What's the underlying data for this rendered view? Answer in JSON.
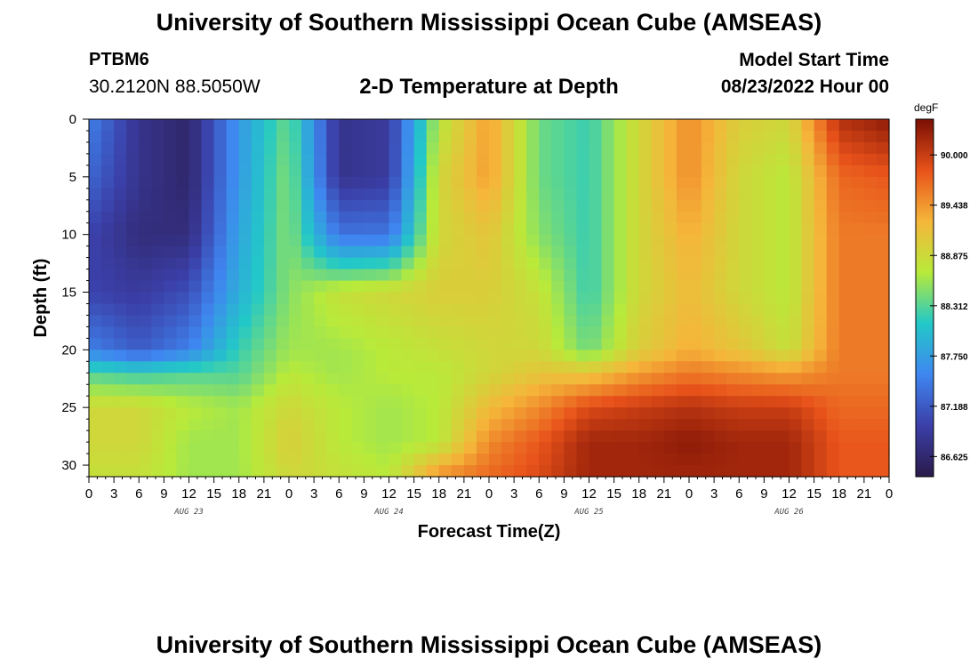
{
  "header": {
    "title": "University of Southern Mississippi Ocean Cube (AMSEAS)",
    "station_id": "PTBM6",
    "coordinates": "30.2120N  88.5050W",
    "subtitle": "2-D Temperature at Depth",
    "model_start_label": "Model Start Time",
    "model_start_value": "08/23/2022 Hour 00"
  },
  "footer": {
    "title": "University of Southern Mississippi Ocean Cube (AMSEAS)"
  },
  "chart_data": {
    "type": "heatmap",
    "title": "2-D Temperature at Depth",
    "xlabel": "Forecast Time(Z)",
    "ylabel": "Depth (ft)",
    "x_unit": "hours since 08/23/2022 00Z",
    "x_range": [
      0,
      96
    ],
    "y_range": [
      0,
      31
    ],
    "y_inverted": true,
    "x_tick_labels": [
      "0",
      "3",
      "6",
      "9",
      "12",
      "15",
      "18",
      "21",
      "0",
      "3",
      "6",
      "9",
      "12",
      "15",
      "18",
      "21",
      "0",
      "3",
      "6",
      "9",
      "12",
      "15",
      "18",
      "21",
      "0",
      "3",
      "6",
      "9",
      "12",
      "15",
      "18",
      "21",
      "0"
    ],
    "y_ticks": [
      0,
      5,
      10,
      15,
      20,
      25,
      30
    ],
    "day_labels": [
      "AUG 23",
      "AUG 24",
      "AUG 25",
      "AUG 26"
    ],
    "colorbar": {
      "unit": "degF",
      "range": [
        86.4,
        90.4
      ],
      "ticks": [
        90.0,
        89.438,
        88.875,
        88.312,
        87.75,
        87.188,
        86.625
      ],
      "tick_labels": [
        "90.000",
        "89.438",
        "88.875",
        "88.312",
        "87.750",
        "87.188",
        "86.625"
      ],
      "colors": [
        "#2a1a4a",
        "#3b3fa8",
        "#3f86f0",
        "#22c8c8",
        "#b8ea3a",
        "#f5b63a",
        "#e8521a",
        "#7a0f04"
      ]
    },
    "series": [
      {
        "x": 0,
        "depths": [
          0,
          5,
          10,
          15,
          20,
          22,
          25,
          28,
          31
        ],
        "values": [
          87.5,
          87.3,
          87.0,
          87.0,
          87.5,
          88.3,
          88.9,
          88.9,
          88.8
        ]
      },
      {
        "x": 6,
        "depths": [
          0,
          5,
          10,
          15,
          20,
          22,
          25,
          28,
          31
        ],
        "values": [
          86.8,
          86.8,
          86.7,
          86.9,
          87.2,
          88.2,
          88.9,
          88.9,
          88.8
        ]
      },
      {
        "x": 12,
        "depths": [
          0,
          5,
          10,
          15,
          20,
          22,
          25,
          28,
          31
        ],
        "values": [
          86.6,
          86.6,
          86.7,
          87.1,
          87.5,
          88.3,
          88.7,
          88.6,
          88.6
        ]
      },
      {
        "x": 18,
        "depths": [
          0,
          5,
          10,
          15,
          20,
          22,
          25,
          28,
          31
        ],
        "values": [
          87.7,
          87.7,
          87.8,
          87.9,
          88.2,
          88.3,
          88.6,
          88.6,
          88.6
        ]
      },
      {
        "x": 24,
        "depths": [
          0,
          5,
          10,
          15,
          20,
          22,
          25,
          28,
          31
        ],
        "values": [
          88.4,
          88.5,
          88.5,
          88.5,
          88.6,
          88.7,
          88.9,
          89.0,
          88.9
        ]
      },
      {
        "x": 30,
        "depths": [
          0,
          5,
          10,
          15,
          20,
          22,
          25,
          28,
          31
        ],
        "values": [
          86.8,
          86.8,
          87.4,
          88.8,
          88.6,
          88.6,
          88.7,
          88.7,
          88.8
        ]
      },
      {
        "x": 36,
        "depths": [
          0,
          5,
          10,
          15,
          20,
          22,
          25,
          28,
          31
        ],
        "values": [
          86.9,
          86.9,
          87.4,
          88.9,
          88.7,
          88.7,
          88.6,
          88.6,
          88.7
        ]
      },
      {
        "x": 42,
        "depths": [
          0,
          5,
          10,
          15,
          20,
          22,
          25,
          28,
          31
        ],
        "values": [
          88.7,
          88.9,
          88.9,
          89.0,
          88.8,
          88.7,
          88.7,
          88.7,
          89.5
        ]
      },
      {
        "x": 48,
        "depths": [
          0,
          5,
          10,
          15,
          20,
          22,
          25,
          28,
          31
        ],
        "values": [
          89.4,
          89.4,
          89.1,
          89.0,
          88.9,
          88.9,
          89.2,
          89.5,
          89.7
        ]
      },
      {
        "x": 54,
        "depths": [
          0,
          5,
          10,
          15,
          20,
          22,
          25,
          28,
          31
        ],
        "values": [
          88.4,
          88.4,
          88.5,
          88.8,
          88.9,
          89.1,
          89.5,
          89.8,
          89.9
        ]
      },
      {
        "x": 60,
        "depths": [
          0,
          5,
          10,
          15,
          20,
          22,
          25,
          28,
          31
        ],
        "values": [
          88.2,
          88.2,
          88.2,
          88.2,
          88.4,
          89.1,
          89.9,
          90.2,
          90.2
        ]
      },
      {
        "x": 66,
        "depths": [
          0,
          5,
          10,
          15,
          20,
          22,
          25,
          28,
          31
        ],
        "values": [
          88.9,
          88.9,
          88.9,
          88.9,
          89.0,
          89.4,
          90.0,
          90.2,
          90.2
        ]
      },
      {
        "x": 72,
        "depths": [
          0,
          5,
          10,
          15,
          20,
          22,
          25,
          28,
          31
        ],
        "values": [
          89.5,
          89.5,
          89.3,
          89.2,
          89.3,
          89.6,
          90.1,
          90.3,
          90.2
        ]
      },
      {
        "x": 78,
        "depths": [
          0,
          5,
          10,
          15,
          20,
          22,
          25,
          28,
          31
        ],
        "values": [
          89.0,
          88.9,
          88.9,
          88.9,
          89.1,
          89.5,
          90.0,
          90.2,
          90.2
        ]
      },
      {
        "x": 84,
        "depths": [
          0,
          5,
          10,
          15,
          20,
          22,
          25,
          28,
          31
        ],
        "values": [
          88.9,
          88.7,
          88.7,
          88.7,
          88.8,
          89.4,
          90.0,
          90.2,
          90.2
        ]
      },
      {
        "x": 90,
        "depths": [
          0,
          5,
          10,
          15,
          20,
          22,
          25,
          28,
          31
        ],
        "values": [
          90.1,
          89.7,
          89.6,
          89.6,
          89.6,
          89.6,
          89.7,
          89.8,
          89.8
        ]
      },
      {
        "x": 96,
        "depths": [
          0,
          5,
          10,
          15,
          20,
          22,
          25,
          28,
          31
        ],
        "values": [
          90.3,
          89.8,
          89.6,
          89.6,
          89.6,
          89.6,
          89.7,
          89.8,
          89.8
        ]
      }
    ]
  }
}
